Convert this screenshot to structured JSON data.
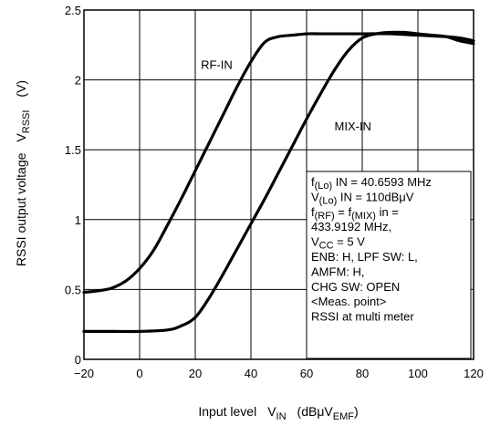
{
  "chart_data": {
    "type": "line",
    "xlabel": {
      "main": "Input level",
      "sym": "V",
      "sym_sub": "IN",
      "unit_pre": "(dBμV",
      "unit_sub": "EMF",
      "unit_post": ")"
    },
    "ylabel": {
      "main": "RSSI output voltage",
      "sym": "V",
      "sym_sub": "RSSI",
      "unit": "(V)"
    },
    "xlim": [
      -20,
      120
    ],
    "ylim": [
      0,
      2.5
    ],
    "x_ticks": [
      -20,
      0,
      20,
      40,
      60,
      80,
      100,
      120
    ],
    "x_tick_labels": [
      "−20",
      "0",
      "20",
      "40",
      "60",
      "80",
      "100",
      "120"
    ],
    "y_ticks": [
      0,
      0.5,
      1,
      1.5,
      2,
      2.5
    ],
    "y_tick_labels": [
      "0",
      "0.5",
      "1",
      "1.5",
      "2",
      "2.5"
    ],
    "grid": true,
    "series": [
      {
        "name": "RF-IN",
        "x": [
          -20,
          -15,
          -10,
          -5,
          0,
          5,
          10,
          15,
          20,
          25,
          30,
          35,
          40,
          45,
          50,
          55,
          60,
          65,
          70,
          80,
          90,
          100,
          110,
          115,
          120
        ],
        "y": [
          0.48,
          0.49,
          0.51,
          0.56,
          0.65,
          0.78,
          0.96,
          1.15,
          1.35,
          1.55,
          1.75,
          1.95,
          2.13,
          2.27,
          2.31,
          2.32,
          2.33,
          2.33,
          2.33,
          2.33,
          2.33,
          2.32,
          2.31,
          2.3,
          2.28
        ]
      },
      {
        "name": "MIX-IN",
        "x": [
          -20,
          -10,
          0,
          10,
          15,
          20,
          25,
          30,
          35,
          40,
          45,
          50,
          55,
          60,
          65,
          70,
          75,
          80,
          85,
          90,
          95,
          100,
          105,
          110,
          115,
          120
        ],
        "y": [
          0.2,
          0.2,
          0.2,
          0.21,
          0.24,
          0.3,
          0.44,
          0.61,
          0.79,
          0.97,
          1.15,
          1.34,
          1.53,
          1.72,
          1.9,
          2.07,
          2.21,
          2.3,
          2.33,
          2.34,
          2.34,
          2.33,
          2.32,
          2.31,
          2.28,
          2.26
        ]
      }
    ],
    "annotations": [
      "RF-IN",
      "MIX-IN"
    ],
    "conditions": [
      {
        "pre": "f",
        "sub": "(Lo)",
        "post": " IN = 40.6593 MHz"
      },
      {
        "pre": "V",
        "sub": "(Lo)",
        "post": " IN = 110dBμV"
      },
      {
        "pre": "f",
        "sub": "(RF)",
        "mid": " = f",
        "sub2": "(MIX)",
        "post": " in ="
      },
      {
        "pre": "433.9192 MHz,"
      },
      {
        "pre": "V",
        "sub": "CC",
        "post": " = 5 V"
      },
      {
        "pre": "ENB: H, LPF SW: L,"
      },
      {
        "pre": "AMFM: H,"
      },
      {
        "pre": "CHG SW: OPEN"
      },
      {
        "pre": "<Meas. point>"
      },
      {
        "pre": "RSSI at multi meter"
      }
    ]
  }
}
